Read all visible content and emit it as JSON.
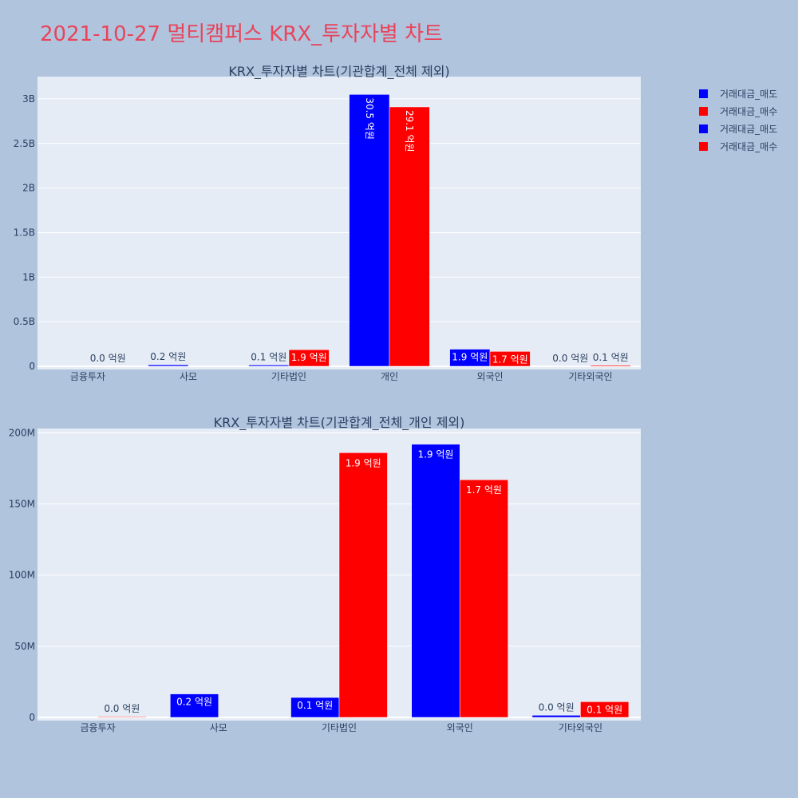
{
  "title": "2021-10-27 멀티캠퍼스 KRX_투자자별 차트",
  "colors": {
    "sell": "#0000ff",
    "buy": "#ff0000",
    "plot_bg": "#e5ecf6",
    "grid": "#ffffff",
    "text": "#2a3f5f"
  },
  "legend": [
    {
      "label": "거래대금_매도",
      "color": "#0000ff"
    },
    {
      "label": "거래대금_매수",
      "color": "#ff0000"
    },
    {
      "label": "거래대금_매도",
      "color": "#0000ff"
    },
    {
      "label": "거래대금_매수",
      "color": "#ff0000"
    }
  ],
  "chart_data": [
    {
      "type": "bar",
      "title": "KRX_투자자별 차트(기관합계_전체 제외)",
      "categories": [
        "금융투자",
        "사모",
        "기타법인",
        "개인",
        "외국인",
        "기타외국인"
      ],
      "series": [
        {
          "name": "거래대금_매도",
          "color": "#0000ff",
          "values": [
            0,
            16500000,
            14000000,
            3050000000,
            192000000,
            1500000
          ],
          "labels": [
            "",
            "0.2 억원",
            "0.1 억원",
            "30.5 억원",
            "1.9 억원",
            "0.0 억원"
          ]
        },
        {
          "name": "거래대금_매수",
          "color": "#ff0000",
          "values": [
            500000,
            0,
            186000000,
            2910000000,
            167000000,
            11000000
          ],
          "labels": [
            "0.0 억원",
            "",
            "1.9 억원",
            "29.1 억원",
            "1.7 억원",
            "0.1 억원"
          ]
        }
      ],
      "ylim": [
        0,
        3250000000
      ],
      "yticks": [
        0,
        500000000,
        1000000000,
        1500000000,
        2000000000,
        2500000000,
        3000000000
      ],
      "ytick_labels": [
        "0",
        "0.5B",
        "1B",
        "1.5B",
        "2B",
        "2.5B",
        "3B"
      ],
      "grid": true
    },
    {
      "type": "bar",
      "title": "KRX_투자자별 차트(기관합계_전체_개인 제외)",
      "categories": [
        "금융투자",
        "사모",
        "기타법인",
        "외국인",
        "기타외국인"
      ],
      "series": [
        {
          "name": "거래대금_매도",
          "color": "#0000ff",
          "values": [
            0,
            16500000,
            14000000,
            192000000,
            1500000
          ],
          "labels": [
            "",
            "0.2 억원",
            "0.1 억원",
            "1.9 억원",
            "0.0 억원"
          ]
        },
        {
          "name": "거래대금_매수",
          "color": "#ff0000",
          "values": [
            500000,
            0,
            186000000,
            167000000,
            11000000
          ],
          "labels": [
            "0.0 억원",
            "",
            "1.9 억원",
            "1.7 억원",
            "0.1 억원"
          ]
        }
      ],
      "ylim": [
        0,
        203000000
      ],
      "yticks": [
        0,
        50000000,
        100000000,
        150000000,
        200000000
      ],
      "ytick_labels": [
        "0",
        "50M",
        "100M",
        "150M",
        "200M"
      ],
      "grid": true
    }
  ]
}
